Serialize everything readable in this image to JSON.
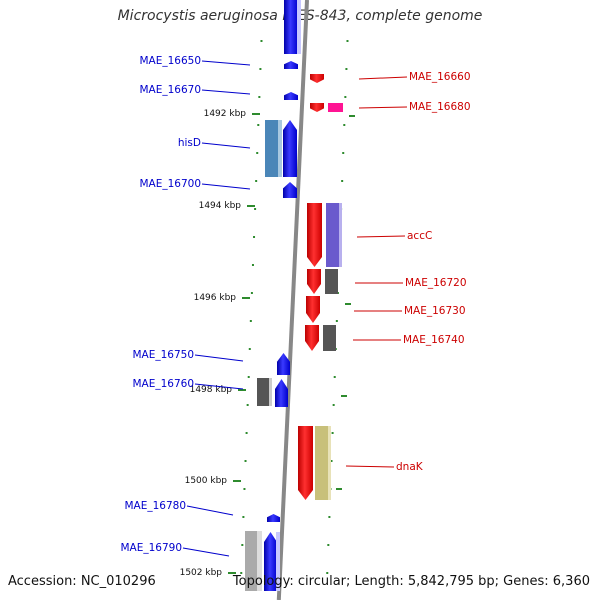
{
  "title": "Microcystis aeruginosa NIES-843, complete genome",
  "footer": {
    "accession": "Accession: NC_010296",
    "topology": "Topology: circular; Length: 5,842,795 bp; Genes: 6,360"
  },
  "colors": {
    "forward": "#0000ff",
    "reverse": "#ff0000",
    "forward_label": "#0000cc",
    "reverse_label": "#cc0000",
    "tick": "#2e8b2e",
    "backbone": "#888888"
  },
  "kbp_labels": [
    "1492 kbp",
    "1494 kbp",
    "1496 kbp",
    "1498 kbp",
    "1500 kbp",
    "1502 kbp"
  ],
  "left_genes": [
    "MAE_16650",
    "MAE_16670",
    "hisD",
    "MAE_16700",
    "MAE_16750",
    "MAE_16760",
    "MAE_16780",
    "MAE_16790"
  ],
  "right_genes": [
    "MAE_16660",
    "MAE_16680",
    "accC",
    "MAE_16720",
    "MAE_16730",
    "MAE_16740",
    "dnaK"
  ]
}
